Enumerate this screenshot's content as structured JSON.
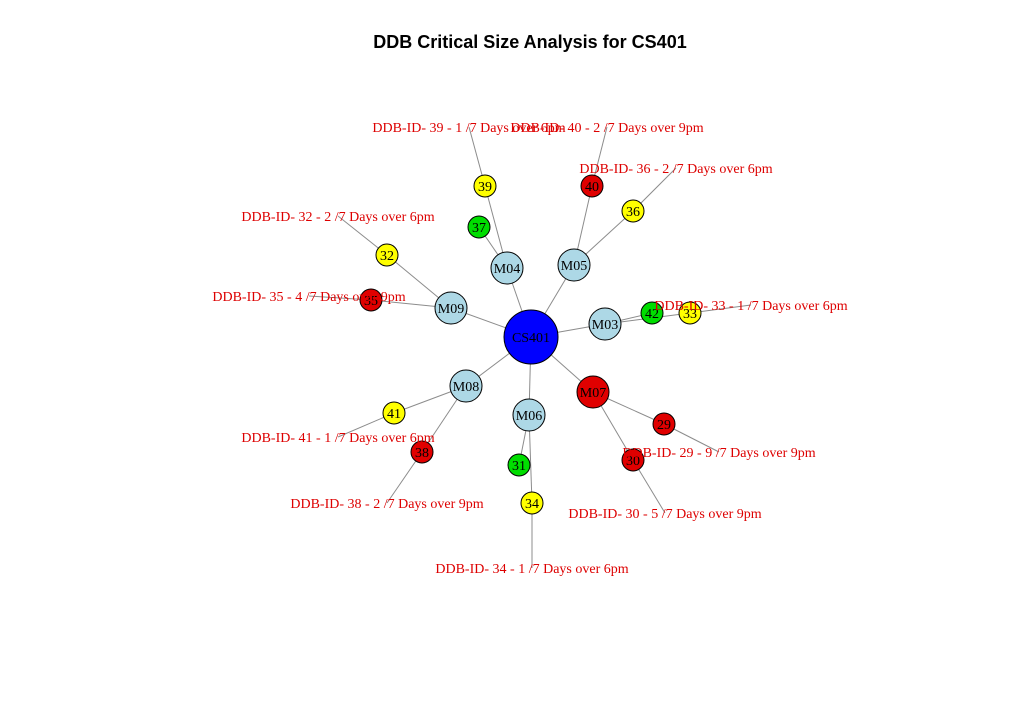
{
  "title": "DDB Critical Size Analysis for  CS401",
  "colors": {
    "root": "#0000ff",
    "machine": "#add8e6",
    "critical": "#e00000",
    "warning": "#ffff00",
    "ok": "#00dd00",
    "label_text": "#dd0000",
    "edge": "#8c8c8c"
  },
  "nodes": [
    {
      "id": "CS401",
      "label": "CS401",
      "kind": "root"
    },
    {
      "id": "M03",
      "label": "M03",
      "kind": "machine"
    },
    {
      "id": "M04",
      "label": "M04",
      "kind": "machine"
    },
    {
      "id": "M05",
      "label": "M05",
      "kind": "machine"
    },
    {
      "id": "M06",
      "label": "M06",
      "kind": "machine"
    },
    {
      "id": "M07",
      "label": "M07",
      "kind": "critical_machine"
    },
    {
      "id": "M08",
      "label": "M08",
      "kind": "machine"
    },
    {
      "id": "M09",
      "label": "M09",
      "kind": "machine"
    },
    {
      "id": "29",
      "label": "29",
      "kind": "critical"
    },
    {
      "id": "30",
      "label": "30",
      "kind": "critical"
    },
    {
      "id": "31",
      "label": "31",
      "kind": "ok"
    },
    {
      "id": "32",
      "label": "32",
      "kind": "warning"
    },
    {
      "id": "33",
      "label": "33",
      "kind": "warning"
    },
    {
      "id": "34",
      "label": "34",
      "kind": "warning"
    },
    {
      "id": "35",
      "label": "35",
      "kind": "critical"
    },
    {
      "id": "36",
      "label": "36",
      "kind": "warning"
    },
    {
      "id": "37",
      "label": "37",
      "kind": "ok"
    },
    {
      "id": "38",
      "label": "38",
      "kind": "critical"
    },
    {
      "id": "39",
      "label": "39",
      "kind": "warning"
    },
    {
      "id": "40",
      "label": "40",
      "kind": "critical"
    },
    {
      "id": "41",
      "label": "41",
      "kind": "warning"
    },
    {
      "id": "42",
      "label": "42",
      "kind": "ok"
    }
  ],
  "edges": [
    {
      "from": "CS401",
      "to": "M03"
    },
    {
      "from": "CS401",
      "to": "M04"
    },
    {
      "from": "CS401",
      "to": "M05"
    },
    {
      "from": "CS401",
      "to": "M06"
    },
    {
      "from": "CS401",
      "to": "M07"
    },
    {
      "from": "CS401",
      "to": "M08"
    },
    {
      "from": "CS401",
      "to": "M09"
    },
    {
      "from": "M03",
      "to": "42"
    },
    {
      "from": "M03",
      "to": "33"
    },
    {
      "from": "M04",
      "to": "37"
    },
    {
      "from": "M04",
      "to": "39"
    },
    {
      "from": "M05",
      "to": "40"
    },
    {
      "from": "M05",
      "to": "36"
    },
    {
      "from": "M06",
      "to": "31"
    },
    {
      "from": "M06",
      "to": "34"
    },
    {
      "from": "M07",
      "to": "29"
    },
    {
      "from": "M07",
      "to": "30"
    },
    {
      "from": "M08",
      "to": "41"
    },
    {
      "from": "M08",
      "to": "38"
    },
    {
      "from": "M09",
      "to": "35"
    },
    {
      "from": "M09",
      "to": "32"
    }
  ],
  "edge_labels": [
    {
      "node": "39",
      "text": "DDB-ID- 39 - 1 /7 Days over 6pm"
    },
    {
      "node": "40",
      "text": "DDB-ID- 40 - 2 /7 Days over 9pm"
    },
    {
      "node": "36",
      "text": "DDB-ID- 36 - 2 /7 Days over 6pm"
    },
    {
      "node": "32",
      "text": "DDB-ID- 32 - 2 /7 Days over 6pm"
    },
    {
      "node": "35",
      "text": "DDB-ID- 35 - 4 /7 Days over 9pm"
    },
    {
      "node": "33",
      "text": "DDB-ID- 33 - 1 /7 Days over 6pm"
    },
    {
      "node": "41",
      "text": "DDB-ID- 41 - 1 /7 Days over 6pm"
    },
    {
      "node": "29",
      "text": "DDB-ID- 29 - 9 /7 Days over 9pm"
    },
    {
      "node": "38",
      "text": "DDB-ID- 38 - 2 /7 Days over 9pm"
    },
    {
      "node": "30",
      "text": "DDB-ID- 30 - 5 /7 Days over 9pm"
    },
    {
      "node": "34",
      "text": "DDB-ID- 34 - 1 /7 Days over 6pm"
    }
  ]
}
